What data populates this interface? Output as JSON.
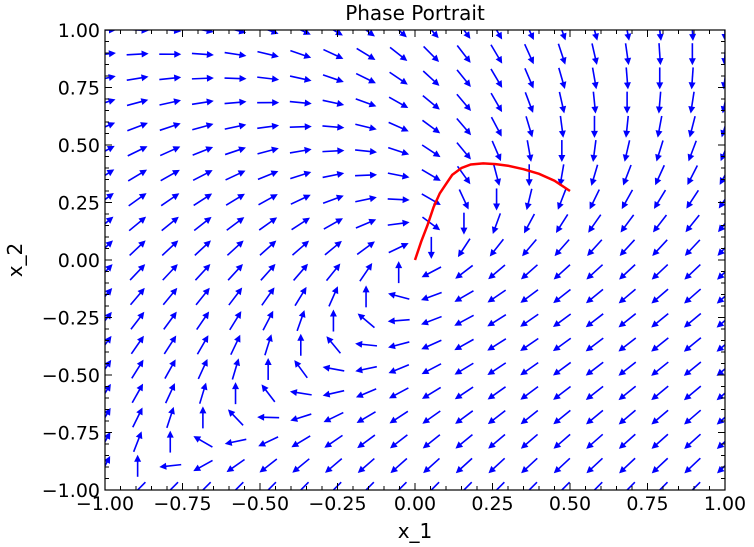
{
  "chart_data": {
    "type": "quiver",
    "title": "Phase Portrait",
    "xlabel": "x_1",
    "ylabel": "x_2",
    "xlim": [
      -1.0,
      1.0
    ],
    "ylim": [
      -1.0,
      1.0
    ],
    "xticks": [
      -1.0,
      -0.75,
      -0.5,
      -0.25,
      0.0,
      0.25,
      0.5,
      0.75,
      1.0
    ],
    "yticks": [
      -1.0,
      -0.75,
      -0.5,
      -0.25,
      0.0,
      0.25,
      0.5,
      0.75,
      1.0
    ],
    "xtick_labels": [
      "−1.00",
      "−0.75",
      "−0.50",
      "−0.25",
      "0.00",
      "0.25",
      "0.50",
      "0.75",
      "1.00"
    ],
    "ytick_labels": [
      "−1.00",
      "−0.75",
      "−0.50",
      "−0.25",
      "0.00",
      "0.25",
      "0.50",
      "0.75",
      "1.00"
    ],
    "grid": false,
    "vector_field": {
      "grid_n": 20,
      "color": "#0000ff",
      "field": "dx1 = x2 - x1, dx2 = -x1 - x2^2 (approx.)"
    },
    "trajectory": {
      "color": "#ff0000",
      "points": [
        [
          0.0,
          0.0
        ],
        [
          0.02,
          0.08
        ],
        [
          0.04,
          0.15
        ],
        [
          0.06,
          0.23
        ],
        [
          0.08,
          0.29
        ],
        [
          0.1,
          0.33
        ],
        [
          0.12,
          0.37
        ],
        [
          0.15,
          0.4
        ],
        [
          0.18,
          0.415
        ],
        [
          0.22,
          0.42
        ],
        [
          0.26,
          0.417
        ],
        [
          0.3,
          0.41
        ],
        [
          0.35,
          0.395
        ],
        [
          0.4,
          0.375
        ],
        [
          0.45,
          0.345
        ],
        [
          0.5,
          0.3
        ]
      ]
    }
  }
}
